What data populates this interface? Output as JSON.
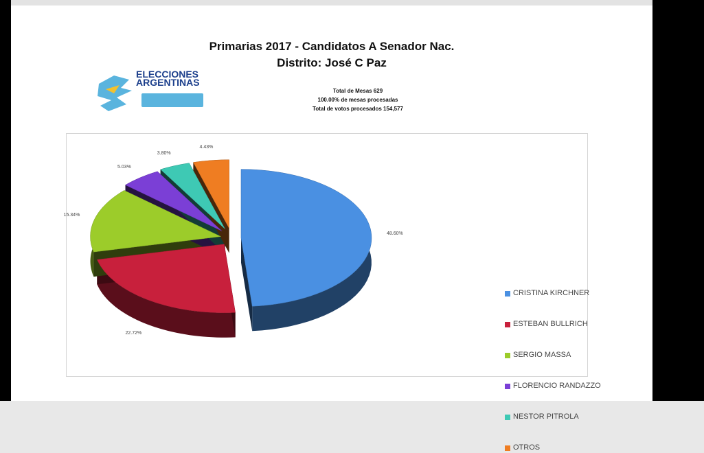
{
  "header": {
    "title_line1": "Primarias 2017 - Candidatos A Senador Nac.",
    "title_line2": "Distrito: José C Paz",
    "stats_line1": "Total de Mesas 629",
    "stats_line2": "100.00% de mesas procesadas",
    "stats_line3": "Total de votos procesados 154,577"
  },
  "logo": {
    "line1": "ELECCIONES",
    "line2": "ARGENTINAS"
  },
  "chart_data": {
    "type": "pie",
    "title": "Primarias 2017 - Candidatos A Senador Nac.",
    "subtitle": "Distrito: José C Paz",
    "legend_position": "right",
    "series": [
      {
        "name": "CRISTINA KIRCHNER",
        "value": 48.6,
        "label": "48.60%",
        "color": "#4a90e2"
      },
      {
        "name": "ESTEBAN BULLRICH",
        "value": 22.72,
        "label": "22.72%",
        "color": "#c8203c"
      },
      {
        "name": "SERGIO MASSA",
        "value": 15.34,
        "label": "15.34%",
        "color": "#9ccc2a"
      },
      {
        "name": "FLORENCIO RANDAZZO",
        "value": 5.03,
        "label": "5.03%",
        "color": "#7b3fd6"
      },
      {
        "name": "NESTOR PITROLA",
        "value": 3.8,
        "label": "3.80%",
        "color": "#3ec9b4"
      },
      {
        "name": "OTROS",
        "value": 4.43,
        "label": "4.43%",
        "color": "#ef7d22"
      }
    ]
  }
}
